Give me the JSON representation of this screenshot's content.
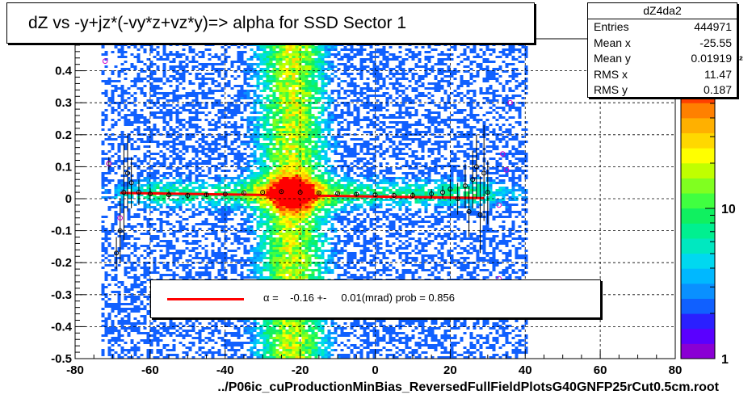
{
  "title": "dZ vs -y+jz*(-vy*z+vz*y)=> alpha for SSD Sector 1",
  "footer": "../P06ic_cuProductionMinBias_ReversedFullFieldPlotsG40GNFP25rCut0.5cm.root",
  "stats": {
    "name": "dZ4da2",
    "rows": [
      {
        "label": "Entries",
        "value": "444971"
      },
      {
        "label": "Mean x",
        "value": "-25.55"
      },
      {
        "label": "Mean y",
        "value": "0.01919"
      },
      {
        "label": "RMS x",
        "value": "11.47"
      },
      {
        "label": "RMS y",
        "value": "0.187"
      }
    ]
  },
  "legend": {
    "symbol": "α",
    "text": " =    -0.16 +-     0.01(mrad) prob = 0.856",
    "line_color": "#ff0000"
  },
  "palette_overflow_char": "²",
  "chart_data": {
    "type": "heatmap",
    "x_range": [
      -80,
      80
    ],
    "y_range": [
      -0.5,
      0.5
    ],
    "x_ticks": [
      -80,
      -60,
      -40,
      -20,
      0,
      20,
      40,
      60,
      80
    ],
    "y_ticks": [
      -0.5,
      -0.4,
      -0.3,
      -0.2,
      -0.1,
      0,
      0.1,
      0.2,
      0.3,
      0.4
    ],
    "grid": true,
    "z_scale": "log",
    "z_ticks": [
      {
        "label": "1",
        "value": 1
      },
      {
        "label": "10",
        "value": 10
      }
    ],
    "palette": [
      "#8a00d4",
      "#5a00ff",
      "#2a20ff",
      "#1060ff",
      "#0a90ff",
      "#00b8ff",
      "#00d8f0",
      "#00e8c0",
      "#00f090",
      "#10f060",
      "#40ff40",
      "#80ff20",
      "#c0ff00",
      "#ffff00",
      "#ffd800",
      "#ffb000",
      "#ff8000",
      "#ff4000",
      "#ff0000"
    ],
    "density": {
      "x_extent": [
        -73,
        40
      ],
      "core_x": -22.5,
      "core_y": 0.02,
      "note": "cross-shaped high-density region"
    },
    "fit_line": {
      "x": [
        -68,
        29
      ],
      "y": [
        0.018,
        0.002
      ],
      "color": "#ff0000"
    },
    "profile_points": [
      {
        "x": -71,
        "y": 0.11,
        "err": 0.02
      },
      {
        "x": -69,
        "y": -0.17,
        "err": 0.05
      },
      {
        "x": -68,
        "y": -0.1,
        "err": 0.1
      },
      {
        "x": -67,
        "y": 0.02,
        "err": 0.15
      },
      {
        "x": -66,
        "y": 0.08,
        "err": 0.12
      },
      {
        "x": -65,
        "y": 0.05,
        "err": 0.08
      },
      {
        "x": -63,
        "y": 0.02,
        "err": 0.04
      },
      {
        "x": -60,
        "y": 0.015,
        "err": 0.02
      },
      {
        "x": -55,
        "y": 0.012,
        "err": 0.012
      },
      {
        "x": -50,
        "y": 0.01,
        "err": 0.008
      },
      {
        "x": -45,
        "y": 0.012,
        "err": 0.006
      },
      {
        "x": -40,
        "y": 0.014,
        "err": 0.004
      },
      {
        "x": -35,
        "y": 0.018,
        "err": 0.003
      },
      {
        "x": -30,
        "y": 0.02,
        "err": 0.002
      },
      {
        "x": -25,
        "y": 0.022,
        "err": 0.002
      },
      {
        "x": -20,
        "y": 0.02,
        "err": 0.002
      },
      {
        "x": -15,
        "y": 0.018,
        "err": 0.003
      },
      {
        "x": -10,
        "y": 0.016,
        "err": 0.004
      },
      {
        "x": -5,
        "y": 0.014,
        "err": 0.005
      },
      {
        "x": 0,
        "y": 0.012,
        "err": 0.006
      },
      {
        "x": 5,
        "y": 0.01,
        "err": 0.008
      },
      {
        "x": 10,
        "y": 0.01,
        "err": 0.01
      },
      {
        "x": 15,
        "y": 0.015,
        "err": 0.015
      },
      {
        "x": 18,
        "y": 0.02,
        "err": 0.02
      },
      {
        "x": 20,
        "y": 0.03,
        "err": 0.03
      },
      {
        "x": 22,
        "y": 0.0,
        "err": 0.05
      },
      {
        "x": 24,
        "y": 0.04,
        "err": 0.07
      },
      {
        "x": 25,
        "y": -0.04,
        "err": 0.08
      },
      {
        "x": 26,
        "y": 0.06,
        "err": 0.09
      },
      {
        "x": 27,
        "y": 0.1,
        "err": 0.1
      },
      {
        "x": 28,
        "y": -0.05,
        "err": 0.12
      },
      {
        "x": 29,
        "y": 0.08,
        "err": 0.15
      },
      {
        "x": 30,
        "y": 0.02,
        "err": 0.1
      }
    ],
    "outlier_points": [
      {
        "x": -72,
        "y": 0.43
      },
      {
        "x": -71,
        "y": 0.11
      },
      {
        "x": 34,
        "y": 0.14
      },
      {
        "x": 36,
        "y": 0.3
      },
      {
        "x": 35,
        "y": 0.09
      },
      {
        "x": 33,
        "y": -0.25
      },
      {
        "x": 33,
        "y": -0.02
      },
      {
        "x": -68,
        "y": -0.06
      }
    ]
  }
}
